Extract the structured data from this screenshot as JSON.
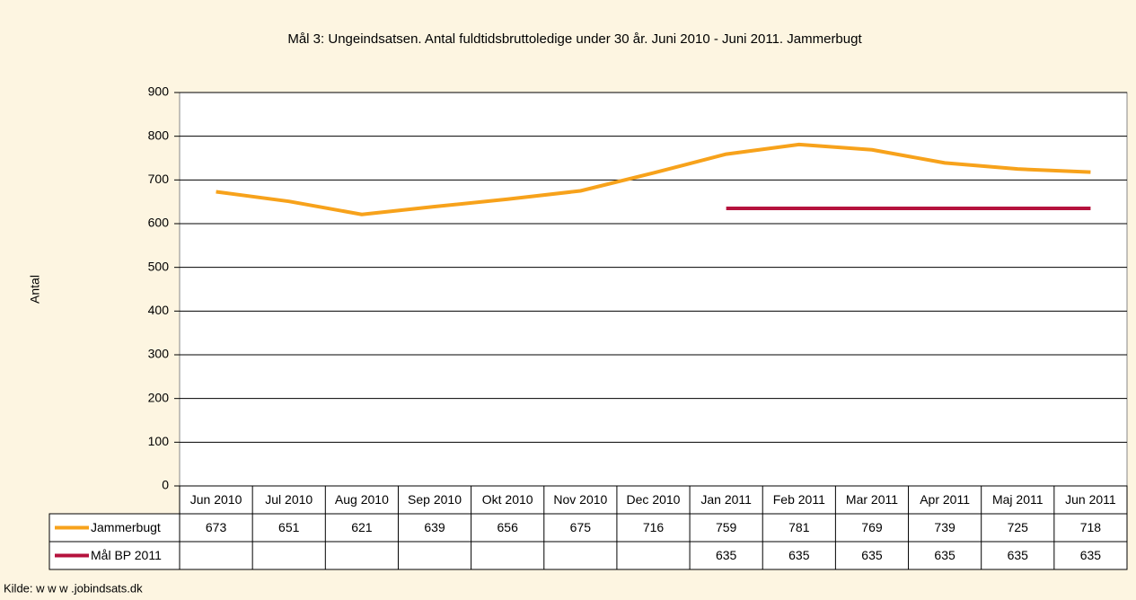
{
  "chart_data": {
    "type": "line",
    "title": "Mål 3: Ungeindsatsen. Antal fuldtidsbruttoledige under 30 år. Juni 2010 - Juni 2011. Jammerbugt",
    "y_label": "Antal",
    "source": "Kilde: w w w .jobindsats.dk",
    "categories": [
      "Jun 2010",
      "Jul 2010",
      "Aug 2010",
      "Sep 2010",
      "Okt 2010",
      "Nov 2010",
      "Dec 2010",
      "Jan 2011",
      "Feb 2011",
      "Mar 2011",
      "Apr 2011",
      "Maj 2011",
      "Jun 2011"
    ],
    "series": [
      {
        "name": "Jammerbugt",
        "color": "#f7a21b",
        "values": [
          673,
          651,
          621,
          639,
          656,
          675,
          716,
          759,
          781,
          769,
          739,
          725,
          718
        ]
      },
      {
        "name": "Mål BP 2011",
        "color": "#b5123d",
        "values": [
          null,
          null,
          null,
          null,
          null,
          null,
          null,
          635,
          635,
          635,
          635,
          635,
          635
        ]
      }
    ],
    "ylim": [
      0,
      900
    ],
    "yticks": [
      0,
      100,
      200,
      300,
      400,
      500,
      600,
      700,
      800,
      900
    ],
    "grid": true,
    "data_table": true
  }
}
